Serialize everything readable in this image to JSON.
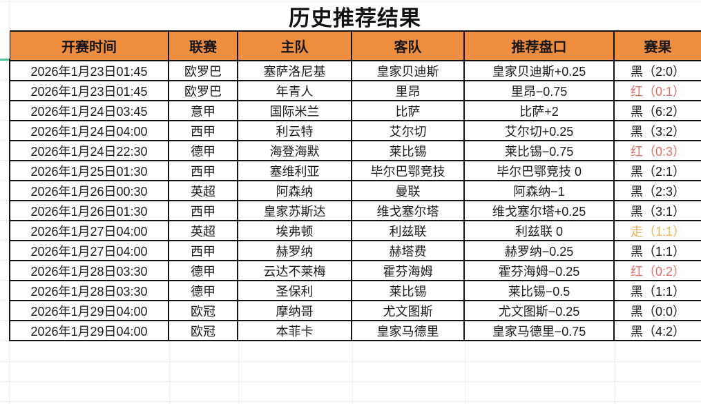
{
  "title": "历史推荐结果",
  "table": {
    "headers": [
      "开赛时间",
      "联赛",
      "主队",
      "客队",
      "推荐盘口",
      "赛果"
    ],
    "rows": [
      {
        "time": "2026年1月23日01:45",
        "league": "欧罗巴",
        "home": "塞萨洛尼基",
        "away": "皇家贝迪斯",
        "handicap": "皇家贝迪斯+0.25",
        "result": "黑（2:0）",
        "result_color": "black"
      },
      {
        "time": "2026年1月23日01:45",
        "league": "欧罗巴",
        "home": "年青人",
        "away": "里昂",
        "handicap": "里昂−0.75",
        "result": "红（0:1）",
        "result_color": "red"
      },
      {
        "time": "2026年1月24日03:45",
        "league": "意甲",
        "home": "国际米兰",
        "away": "比萨",
        "handicap": "比萨+2",
        "result": "黑（6:2）",
        "result_color": "black"
      },
      {
        "time": "2026年1月24日04:00",
        "league": "西甲",
        "home": "利云特",
        "away": "艾尔切",
        "handicap": "艾尔切+0.25",
        "result": "黑（3:2）",
        "result_color": "black"
      },
      {
        "time": "2026年1月24日22:30",
        "league": "德甲",
        "home": "海登海默",
        "away": "莱比锡",
        "handicap": "莱比锡−0.75",
        "result": "红（0:3）",
        "result_color": "red"
      },
      {
        "time": "2026年1月25日01:30",
        "league": "西甲",
        "home": "塞维利亚",
        "away": "毕尔巴鄂竞技",
        "handicap": "毕尔巴鄂竞技 0",
        "result": "黑（2:1）",
        "result_color": "black"
      },
      {
        "time": "2026年1月26日00:30",
        "league": "英超",
        "home": "阿森纳",
        "away": "曼联",
        "handicap": "阿森纳−1",
        "result": "黑（2:3）",
        "result_color": "black"
      },
      {
        "time": "2026年1月26日01:30",
        "league": "西甲",
        "home": "皇家苏斯达",
        "away": "维戈塞尔塔",
        "handicap": "维戈塞尔塔+0.25",
        "result": "黑（3:1）",
        "result_color": "black"
      },
      {
        "time": "2026年1月27日04:00",
        "league": "英超",
        "home": "埃弗顿",
        "away": "利兹联",
        "handicap": "利兹联 0",
        "result": "走（1:1）",
        "result_color": "draw"
      },
      {
        "time": "2026年1月27日04:00",
        "league": "西甲",
        "home": "赫罗纳",
        "away": "赫塔费",
        "handicap": "赫罗纳−0.25",
        "result": "黑（1:1）",
        "result_color": "black"
      },
      {
        "time": "2026年1月28日03:30",
        "league": "德甲",
        "home": "云达不莱梅",
        "away": "霍芬海姆",
        "handicap": "霍芬海姆−0.25",
        "result": "红（0:2）",
        "result_color": "red"
      },
      {
        "time": "2026年1月28日03:30",
        "league": "德甲",
        "home": "圣保利",
        "away": "莱比锡",
        "handicap": "莱比锡−0.5",
        "result": "黑（1:1）",
        "result_color": "black"
      },
      {
        "time": "2026年1月29日04:00",
        "league": "欧冠",
        "home": "摩纳哥",
        "away": "尤文图斯",
        "handicap": "尤文图斯−0.25",
        "result": "黑（0:0）",
        "result_color": "black"
      },
      {
        "time": "2026年1月29日04:00",
        "league": "欧冠",
        "home": "本菲卡",
        "away": "皇家马德里",
        "handicap": "皇家马德里−0.75",
        "result": "黑（4:2）",
        "result_color": "black"
      }
    ]
  },
  "colors": {
    "header_bg": "#ef8e3e",
    "result_black": "#1c1c1c",
    "result_red": "#df7065",
    "result_draw": "#e9b453",
    "accent_green": "#4fc598",
    "border": "#111111",
    "faint_gridline": "#f3e9e9"
  }
}
